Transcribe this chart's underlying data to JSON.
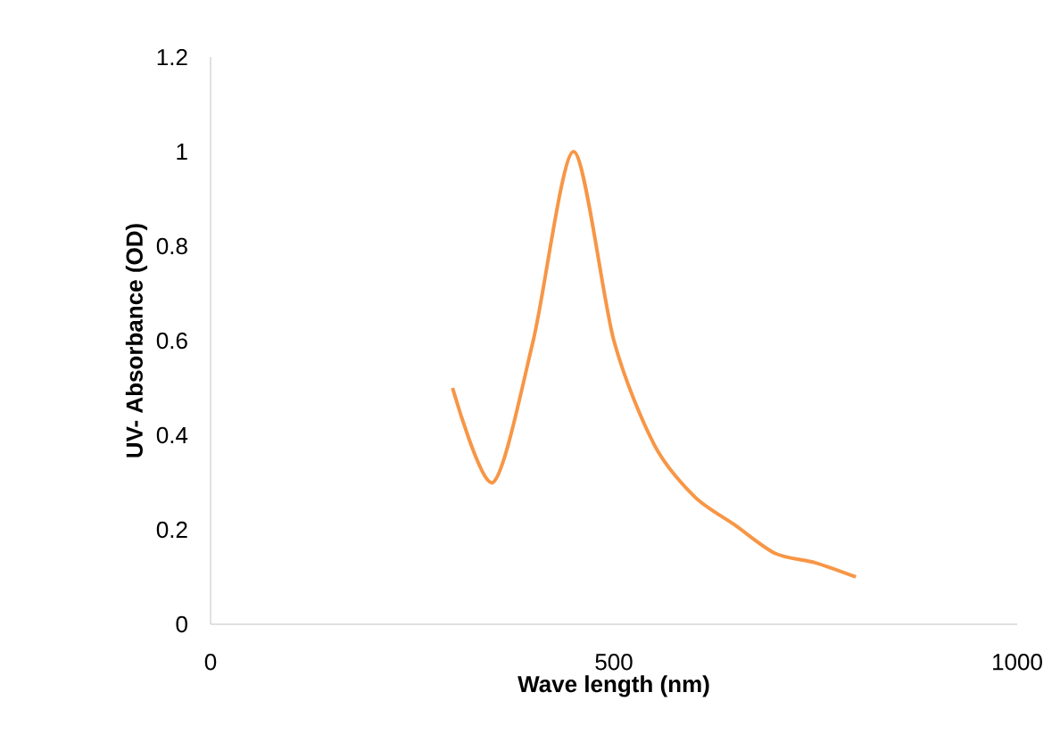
{
  "chart_data": {
    "type": "line",
    "xlabel": "Wave length (nm)",
    "ylabel": "UV- Absorbance (OD)",
    "xlim": [
      0,
      1000
    ],
    "xticks": [
      0,
      500,
      1000
    ],
    "ylim": [
      0,
      1.2
    ],
    "yticks": [
      0,
      0.2,
      0.4,
      0.6,
      0.8,
      1,
      1.2
    ],
    "grid": false,
    "marker": "none",
    "line_style": "solid",
    "series": [
      {
        "color": "#f79646",
        "x": [
          300,
          350,
          400,
          450,
          500,
          550,
          600,
          650,
          700,
          750,
          800
        ],
        "values": [
          0.5,
          0.3,
          0.6,
          1.0,
          0.6,
          0.38,
          0.27,
          0.21,
          0.15,
          0.13,
          0.1
        ]
      }
    ]
  }
}
